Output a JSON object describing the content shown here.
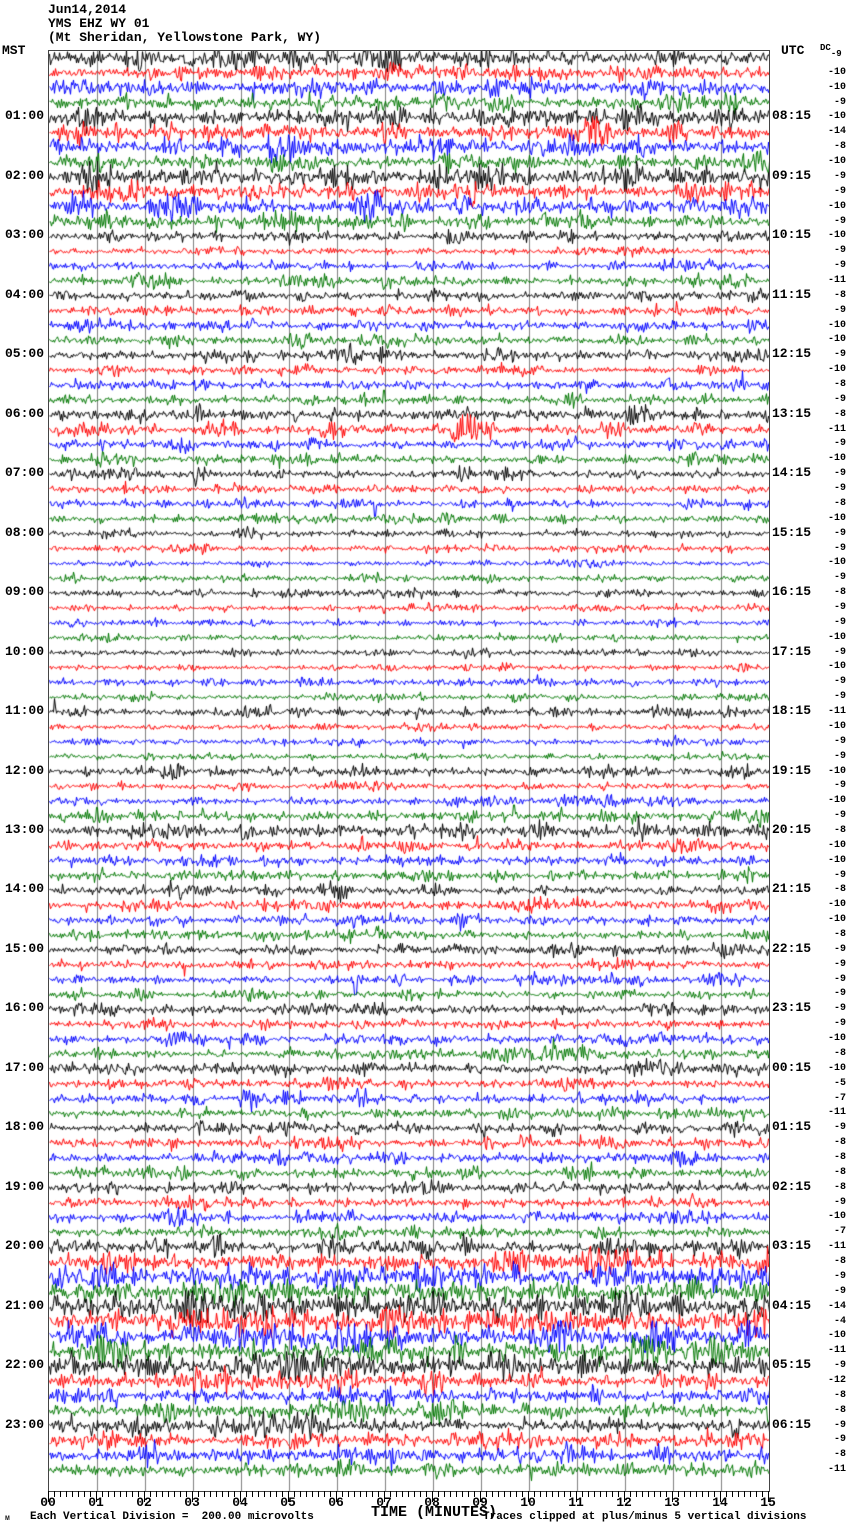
{
  "header": {
    "date": "Jun14,2014",
    "station": "YMS EHZ WY 01",
    "location": "(Mt Sheridan, Yellowstone Park, WY)"
  },
  "axis": {
    "left_label": "MST",
    "right_label": "UTC",
    "dc_label": "DC",
    "x_title": "TIME (MINUTES)",
    "x_ticks": [
      "00",
      "01",
      "02",
      "03",
      "04",
      "05",
      "06",
      "07",
      "08",
      "09",
      "10",
      "11",
      "12",
      "13",
      "14",
      "15"
    ]
  },
  "footer": {
    "left": "Each Vertical Division =  200.00 microvolts",
    "right": "Traces clipped at plus/minus 5 vertical divisions",
    "watermark": "м"
  },
  "chart_data": {
    "type": "line",
    "subtype": "helicorder-seismogram",
    "title": "YMS EHZ WY 01 (Mt Sheridan, Yellowstone Park, WY) Jun14,2014",
    "xlabel": "TIME (MINUTES)",
    "x_range_minutes": [
      0,
      15
    ],
    "minutes_per_line": 15,
    "traces_per_hour": 4,
    "minor_ticks_per_minute": 8,
    "clip_divisions": 5,
    "microvolts_per_division": 200.0,
    "colors_cycle": [
      "#000000",
      "#ff0000",
      "#0000ff",
      "#007700"
    ],
    "grid_color": "#7f7f7f",
    "rows": [
      {
        "c": 0,
        "dc": -9,
        "a": 5
      },
      {
        "c": 1,
        "dc": -10,
        "a": 4,
        "b": [
          [
            0.45,
            0.04,
            1.8
          ],
          [
            0.62,
            0.04,
            1.8
          ]
        ]
      },
      {
        "c": 2,
        "dc": -10,
        "a": 4.5,
        "b": [
          [
            0.35,
            0.15,
            1.6
          ]
        ]
      },
      {
        "c": 3,
        "dc": -9,
        "a": 4,
        "b": [
          [
            0.4,
            0.06,
            1.6
          ]
        ]
      },
      {
        "c": 0,
        "dc": -10,
        "a": 5.5,
        "mst": "01:00",
        "utc": "08:15",
        "b": [
          [
            0.3,
            0.05,
            1.5
          ],
          [
            0.78,
            0.06,
            1.8
          ]
        ]
      },
      {
        "c": 1,
        "dc": -14,
        "a": 5,
        "b": [
          [
            0.45,
            0.05,
            1.8
          ],
          [
            0.72,
            0.06,
            2.0
          ],
          [
            0.85,
            0.05,
            1.8
          ]
        ]
      },
      {
        "c": 2,
        "dc": -8,
        "a": 5,
        "b": [
          [
            0.3,
            0.06,
            2.2
          ],
          [
            0.78,
            0.05,
            1.8
          ]
        ]
      },
      {
        "c": 3,
        "dc": -10,
        "a": 4.5,
        "b": [
          [
            0.29,
            0.05,
            2.2
          ]
        ]
      },
      {
        "c": 0,
        "dc": -9,
        "a": 5.5,
        "mst": "02:00",
        "utc": "09:15",
        "b": [
          [
            0.05,
            0.05,
            1.5
          ],
          [
            0.55,
            0.05,
            1.5
          ],
          [
            0.85,
            0.05,
            1.8
          ]
        ]
      },
      {
        "c": 1,
        "dc": -9,
        "a": 4.5,
        "b": [
          [
            0.4,
            0.04,
            2.0
          ],
          [
            0.56,
            0.04,
            1.8
          ]
        ]
      },
      {
        "c": 2,
        "dc": -10,
        "a": 5,
        "b": [
          [
            0.02,
            0.05,
            3.0
          ],
          [
            0.42,
            0.07,
            2.2
          ],
          [
            0.55,
            0.05,
            1.6
          ]
        ]
      },
      {
        "c": 3,
        "dc": -9,
        "a": 4,
        "b": [
          [
            0.05,
            0.04,
            2.5
          ],
          [
            0.3,
            0.05,
            1.6
          ]
        ]
      },
      {
        "c": 0,
        "dc": -10,
        "a": 3,
        "mst": "03:00",
        "utc": "10:15"
      },
      {
        "c": 1,
        "dc": -9,
        "a": 2.2
      },
      {
        "c": 2,
        "dc": -9,
        "a": 2.5,
        "b": [
          [
            0.3,
            0.05,
            1.5
          ]
        ]
      },
      {
        "c": 3,
        "dc": -11,
        "a": 2.8,
        "b": [
          [
            0.55,
            0.05,
            1.5
          ]
        ]
      },
      {
        "c": 0,
        "dc": -8,
        "a": 3,
        "mst": "04:00",
        "utc": "11:15",
        "b": [
          [
            0.25,
            0.05,
            1.5
          ]
        ]
      },
      {
        "c": 1,
        "dc": -9,
        "a": 2.8
      },
      {
        "c": 2,
        "dc": -10,
        "a": 3
      },
      {
        "c": 3,
        "dc": -10,
        "a": 2.8
      },
      {
        "c": 0,
        "dc": -9,
        "a": 3.5,
        "mst": "05:00",
        "utc": "12:15"
      },
      {
        "c": 1,
        "dc": -10,
        "a": 2.5
      },
      {
        "c": 2,
        "dc": -8,
        "a": 2.8
      },
      {
        "c": 3,
        "dc": -9,
        "a": 2.8,
        "b": [
          [
            0.465,
            0.006,
            3.5
          ]
        ]
      },
      {
        "c": 0,
        "dc": -8,
        "a": 4,
        "mst": "06:00",
        "utc": "13:15",
        "b": [
          [
            0.1,
            0.05,
            1.5
          ],
          [
            0.8,
            0.05,
            1.5
          ]
        ]
      },
      {
        "c": 1,
        "dc": -11,
        "a": 3.5,
        "b": [
          [
            0.55,
            0.05,
            1.8
          ]
        ]
      },
      {
        "c": 2,
        "dc": -9,
        "a": 3,
        "b": [
          [
            0.72,
            0.05,
            1.6
          ]
        ]
      },
      {
        "c": 3,
        "dc": -10,
        "a": 2.8
      },
      {
        "c": 0,
        "dc": -9,
        "a": 2.8,
        "mst": "07:00",
        "utc": "14:15"
      },
      {
        "c": 1,
        "dc": -9,
        "a": 2.5
      },
      {
        "c": 2,
        "dc": -8,
        "a": 2.5,
        "b": [
          [
            0.452,
            0.004,
            -5
          ]
        ]
      },
      {
        "c": 3,
        "dc": -10,
        "a": 2.2
      },
      {
        "c": 0,
        "dc": -9,
        "a": 2.2,
        "mst": "08:00",
        "utc": "15:15"
      },
      {
        "c": 1,
        "dc": -9,
        "a": 2,
        "b": [
          [
            0.52,
            0.04,
            1.5
          ]
        ]
      },
      {
        "c": 2,
        "dc": -10,
        "a": 1.8
      },
      {
        "c": 3,
        "dc": -9,
        "a": 2
      },
      {
        "c": 0,
        "dc": -8,
        "a": 2,
        "mst": "09:00",
        "utc": "16:15"
      },
      {
        "c": 1,
        "dc": -9,
        "a": 1.8,
        "b": [
          [
            0.465,
            0.005,
            -3
          ]
        ]
      },
      {
        "c": 2,
        "dc": -9,
        "a": 1.8
      },
      {
        "c": 3,
        "dc": -10,
        "a": 1.8
      },
      {
        "c": 0,
        "dc": -9,
        "a": 2,
        "mst": "10:00",
        "utc": "17:15"
      },
      {
        "c": 1,
        "dc": -10,
        "a": 1.8
      },
      {
        "c": 2,
        "dc": -9,
        "a": 2.2,
        "b": [
          [
            0.55,
            0.3,
            1.4
          ]
        ]
      },
      {
        "c": 3,
        "dc": -9,
        "a": 1.8
      },
      {
        "c": 0,
        "dc": -11,
        "a": 2.8,
        "mst": "11:00",
        "utc": "18:15",
        "b": [
          [
            0.02,
            0.1,
            1.4
          ]
        ]
      },
      {
        "c": 1,
        "dc": -10,
        "a": 2,
        "b": [
          [
            0.3,
            0.04,
            1.5
          ]
        ]
      },
      {
        "c": 2,
        "dc": -9,
        "a": 2
      },
      {
        "c": 3,
        "dc": -9,
        "a": 2
      },
      {
        "c": 0,
        "dc": -10,
        "a": 2.8,
        "mst": "12:00",
        "utc": "19:15"
      },
      {
        "c": 1,
        "dc": -9,
        "a": 2.2,
        "b": [
          [
            0.14,
            0.04,
            1.6
          ]
        ]
      },
      {
        "c": 2,
        "dc": -10,
        "a": 2.5,
        "b": [
          [
            0.42,
            0.06,
            1.7
          ],
          [
            0.55,
            0.05,
            1.5
          ]
        ]
      },
      {
        "c": 3,
        "dc": -9,
        "a": 3.5,
        "b": [
          [
            0.645,
            0.006,
            3.2
          ]
        ]
      },
      {
        "c": 0,
        "dc": -8,
        "a": 3.8,
        "mst": "13:00",
        "utc": "20:15"
      },
      {
        "c": 1,
        "dc": -10,
        "a": 3,
        "b": [
          [
            0.4,
            0.05,
            1.7
          ],
          [
            0.58,
            0.04,
            1.5
          ],
          [
            0.85,
            0.04,
            1.5
          ]
        ]
      },
      {
        "c": 2,
        "dc": -10,
        "a": 2.8,
        "b": [
          [
            0.65,
            0.05,
            1.4
          ]
        ]
      },
      {
        "c": 3,
        "dc": -9,
        "a": 3,
        "b": [
          [
            0.3,
            0.05,
            1.4
          ]
        ]
      },
      {
        "c": 0,
        "dc": -8,
        "a": 3,
        "mst": "14:00",
        "utc": "21:15"
      },
      {
        "c": 1,
        "dc": -10,
        "a": 2.8
      },
      {
        "c": 2,
        "dc": -10,
        "a": 3,
        "b": [
          [
            0.55,
            0.05,
            1.5
          ]
        ]
      },
      {
        "c": 3,
        "dc": -8,
        "a": 2.8
      },
      {
        "c": 0,
        "dc": -9,
        "a": 2.8,
        "mst": "15:00",
        "utc": "22:15"
      },
      {
        "c": 1,
        "dc": -9,
        "a": 2.8,
        "b": [
          [
            0.35,
            0.05,
            1.5
          ]
        ]
      },
      {
        "c": 2,
        "dc": -9,
        "a": 2.5,
        "b": [
          [
            0.425,
            0.004,
            -6
          ]
        ]
      },
      {
        "c": 3,
        "dc": -9,
        "a": 2.5
      },
      {
        "c": 0,
        "dc": -9,
        "a": 3,
        "mst": "16:00",
        "utc": "23:15",
        "b": [
          [
            0.83,
            0.05,
            2.0
          ]
        ]
      },
      {
        "c": 1,
        "dc": -9,
        "a": 2.8
      },
      {
        "c": 2,
        "dc": -10,
        "a": 2.8
      },
      {
        "c": 3,
        "dc": -8,
        "a": 3
      },
      {
        "c": 0,
        "dc": -10,
        "a": 3.2,
        "mst": "17:00",
        "utc": "00:15",
        "b": [
          [
            0.3,
            0.05,
            1.5
          ]
        ]
      },
      {
        "c": 1,
        "dc": -5,
        "a": 2.8
      },
      {
        "c": 2,
        "dc": -7,
        "a": 3.2,
        "b": [
          [
            0.25,
            0.05,
            1.4
          ]
        ]
      },
      {
        "c": 3,
        "dc": -11,
        "a": 3
      },
      {
        "c": 0,
        "dc": -9,
        "a": 3,
        "mst": "18:00",
        "utc": "01:15"
      },
      {
        "c": 1,
        "dc": -8,
        "a": 2.8
      },
      {
        "c": 2,
        "dc": -8,
        "a": 3.2,
        "b": [
          [
            0.3,
            0.03,
            1.8
          ]
        ]
      },
      {
        "c": 3,
        "dc": -8,
        "a": 2.8
      },
      {
        "c": 0,
        "dc": -8,
        "a": 3.5,
        "mst": "19:00",
        "utc": "02:15",
        "b": [
          [
            0.07,
            0.04,
            1.8
          ]
        ]
      },
      {
        "c": 1,
        "dc": -9,
        "a": 3,
        "b": [
          [
            0.55,
            0.03,
            1.9
          ]
        ]
      },
      {
        "c": 2,
        "dc": -10,
        "a": 3.2
      },
      {
        "c": 3,
        "dc": -7,
        "a": 3.5
      },
      {
        "c": 0,
        "dc": -11,
        "a": 4,
        "mst": "20:00",
        "utc": "03:15",
        "b": [
          [
            0.55,
            0.06,
            1.5
          ]
        ]
      },
      {
        "c": 1,
        "dc": -8,
        "a": 6
      },
      {
        "c": 2,
        "dc": -9,
        "a": 6.5,
        "b": [
          [
            0.2,
            0.1,
            1.4
          ],
          [
            0.72,
            0.12,
            1.5
          ]
        ]
      },
      {
        "c": 3,
        "dc": -9,
        "a": 7
      },
      {
        "c": 0,
        "dc": -14,
        "a": 8,
        "mst": "21:00",
        "utc": "04:15",
        "b": [
          [
            0.25,
            0.1,
            1.4
          ],
          [
            0.5,
            0.08,
            1.3
          ]
        ]
      },
      {
        "c": 1,
        "dc": -4,
        "a": 7,
        "b": [
          [
            0.13,
            0.15,
            1.8
          ]
        ]
      },
      {
        "c": 2,
        "dc": -10,
        "a": 7,
        "b": [
          [
            0.18,
            0.06,
            2.0
          ],
          [
            0.68,
            0.08,
            1.4
          ]
        ]
      },
      {
        "c": 3,
        "dc": -11,
        "a": 6.5,
        "b": [
          [
            0.565,
            0.008,
            2.8
          ]
        ]
      },
      {
        "c": 0,
        "dc": -9,
        "a": 6,
        "mst": "22:00",
        "utc": "05:15"
      },
      {
        "c": 1,
        "dc": -12,
        "a": 5,
        "b": [
          [
            0.18,
            0.04,
            1.8
          ]
        ]
      },
      {
        "c": 2,
        "dc": -8,
        "a": 4.5
      },
      {
        "c": 3,
        "dc": -8,
        "a": 4.5,
        "b": [
          [
            0.56,
            0.006,
            2.5
          ]
        ]
      },
      {
        "c": 0,
        "dc": -9,
        "a": 5,
        "mst": "23:00",
        "utc": "06:15"
      },
      {
        "c": 1,
        "dc": -9,
        "a": 4.5
      },
      {
        "c": 2,
        "dc": -8,
        "a": 4.5
      },
      {
        "c": 3,
        "dc": -11,
        "a": 4.5
      }
    ]
  }
}
